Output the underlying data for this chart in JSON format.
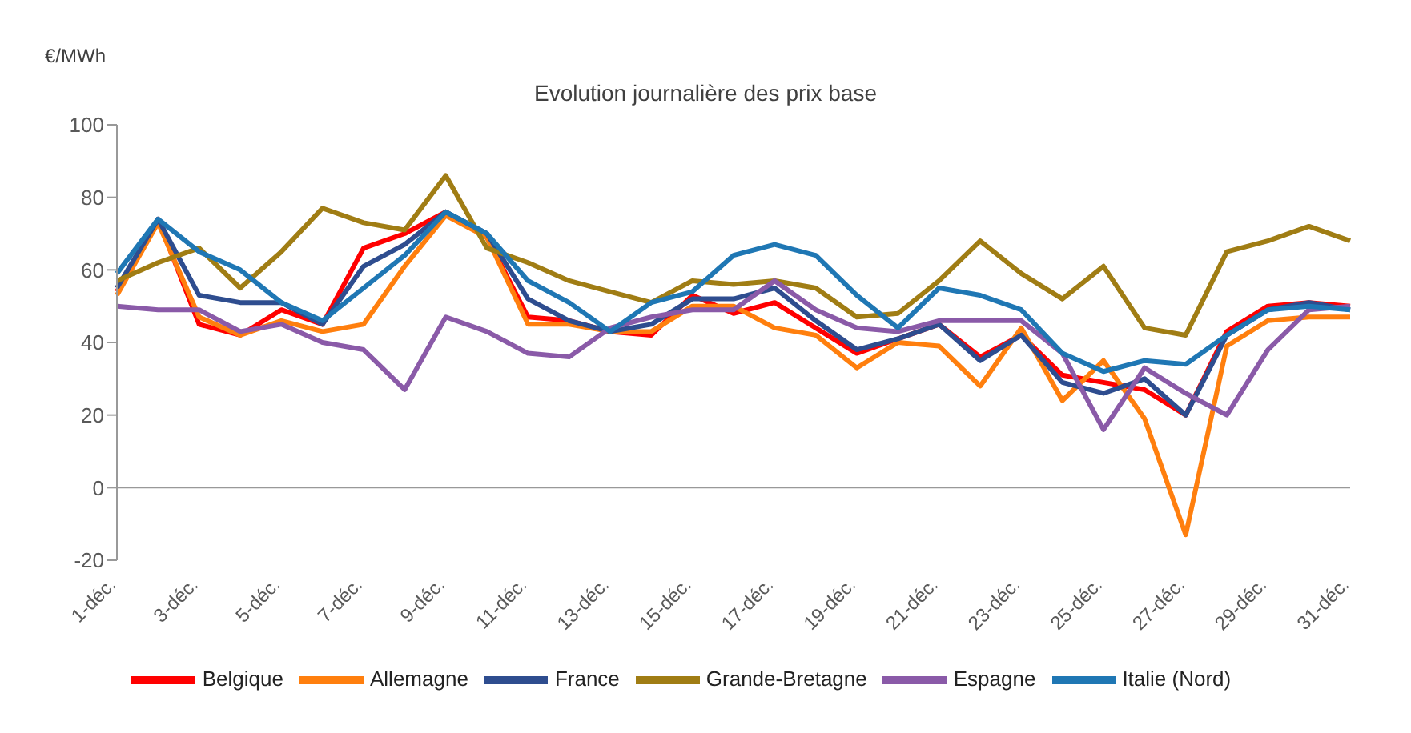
{
  "chart_data": {
    "type": "line",
    "title": "Evolution journalière des prix base",
    "ylabel": "€/MWh",
    "categories": [
      "1-déc.",
      null,
      "3-déc.",
      null,
      "5-déc.",
      null,
      "7-déc.",
      null,
      "9-déc.",
      null,
      "11-déc.",
      null,
      "13-déc.",
      null,
      "15-déc.",
      null,
      "17-déc.",
      null,
      "19-déc.",
      null,
      "21-déc.",
      null,
      "23-déc.",
      null,
      "25-déc.",
      null,
      "27-déc.",
      null,
      "29-déc.",
      null,
      "31-déc."
    ],
    "series": [
      {
        "name": "Belgique",
        "color": "#ff0000",
        "values": [
          54,
          74,
          45,
          42,
          49,
          45,
          66,
          70,
          76,
          69,
          47,
          46,
          43,
          42,
          53,
          48,
          51,
          44,
          37,
          41,
          45,
          36,
          42,
          31,
          29,
          27,
          20,
          43,
          50,
          51,
          50
        ]
      },
      {
        "name": "Allemagne",
        "color": "#ff7f0e",
        "values": [
          53,
          73,
          47,
          42,
          46,
          43,
          45,
          61,
          75,
          69,
          45,
          45,
          43,
          43,
          50,
          50,
          44,
          42,
          33,
          40,
          39,
          28,
          44,
          24,
          35,
          19,
          -13,
          39,
          46,
          47,
          47
        ]
      },
      {
        "name": "France",
        "color": "#2e4d8f",
        "values": [
          55,
          74,
          53,
          51,
          51,
          45,
          61,
          67,
          76,
          70,
          52,
          46,
          43,
          45,
          52,
          52,
          55,
          46,
          38,
          41,
          45,
          35,
          42,
          29,
          26,
          30,
          20,
          42,
          49,
          51,
          49
        ]
      },
      {
        "name": "Grande-Bretagne",
        "color": "#a07d14",
        "values": [
          57,
          62,
          66,
          55,
          65,
          77,
          73,
          71,
          86,
          66,
          62,
          57,
          54,
          51,
          57,
          56,
          57,
          55,
          47,
          48,
          57,
          68,
          59,
          52,
          61,
          44,
          42,
          65,
          68,
          72,
          68
        ]
      },
      {
        "name": "Espagne",
        "color": "#8a5aa8",
        "values": [
          50,
          49,
          49,
          43,
          45,
          40,
          38,
          27,
          47,
          43,
          37,
          36,
          44,
          47,
          49,
          49,
          57,
          49,
          44,
          43,
          46,
          46,
          46,
          37,
          16,
          33,
          26,
          20,
          38,
          49,
          50
        ]
      },
      {
        "name": "Italie (Nord)",
        "color": "#1f77b4",
        "values": [
          59,
          74,
          65,
          60,
          51,
          46,
          55,
          64,
          76,
          70,
          57,
          51,
          43,
          51,
          54,
          64,
          67,
          64,
          53,
          44,
          55,
          53,
          49,
          37,
          32,
          35,
          34,
          42,
          49,
          50,
          49
        ]
      }
    ],
    "ylim": [
      -20,
      100
    ],
    "yticks": [
      -20,
      0,
      20,
      40,
      60,
      80,
      100
    ],
    "legend": "bottom",
    "marker": "none",
    "line_style": "solid"
  }
}
